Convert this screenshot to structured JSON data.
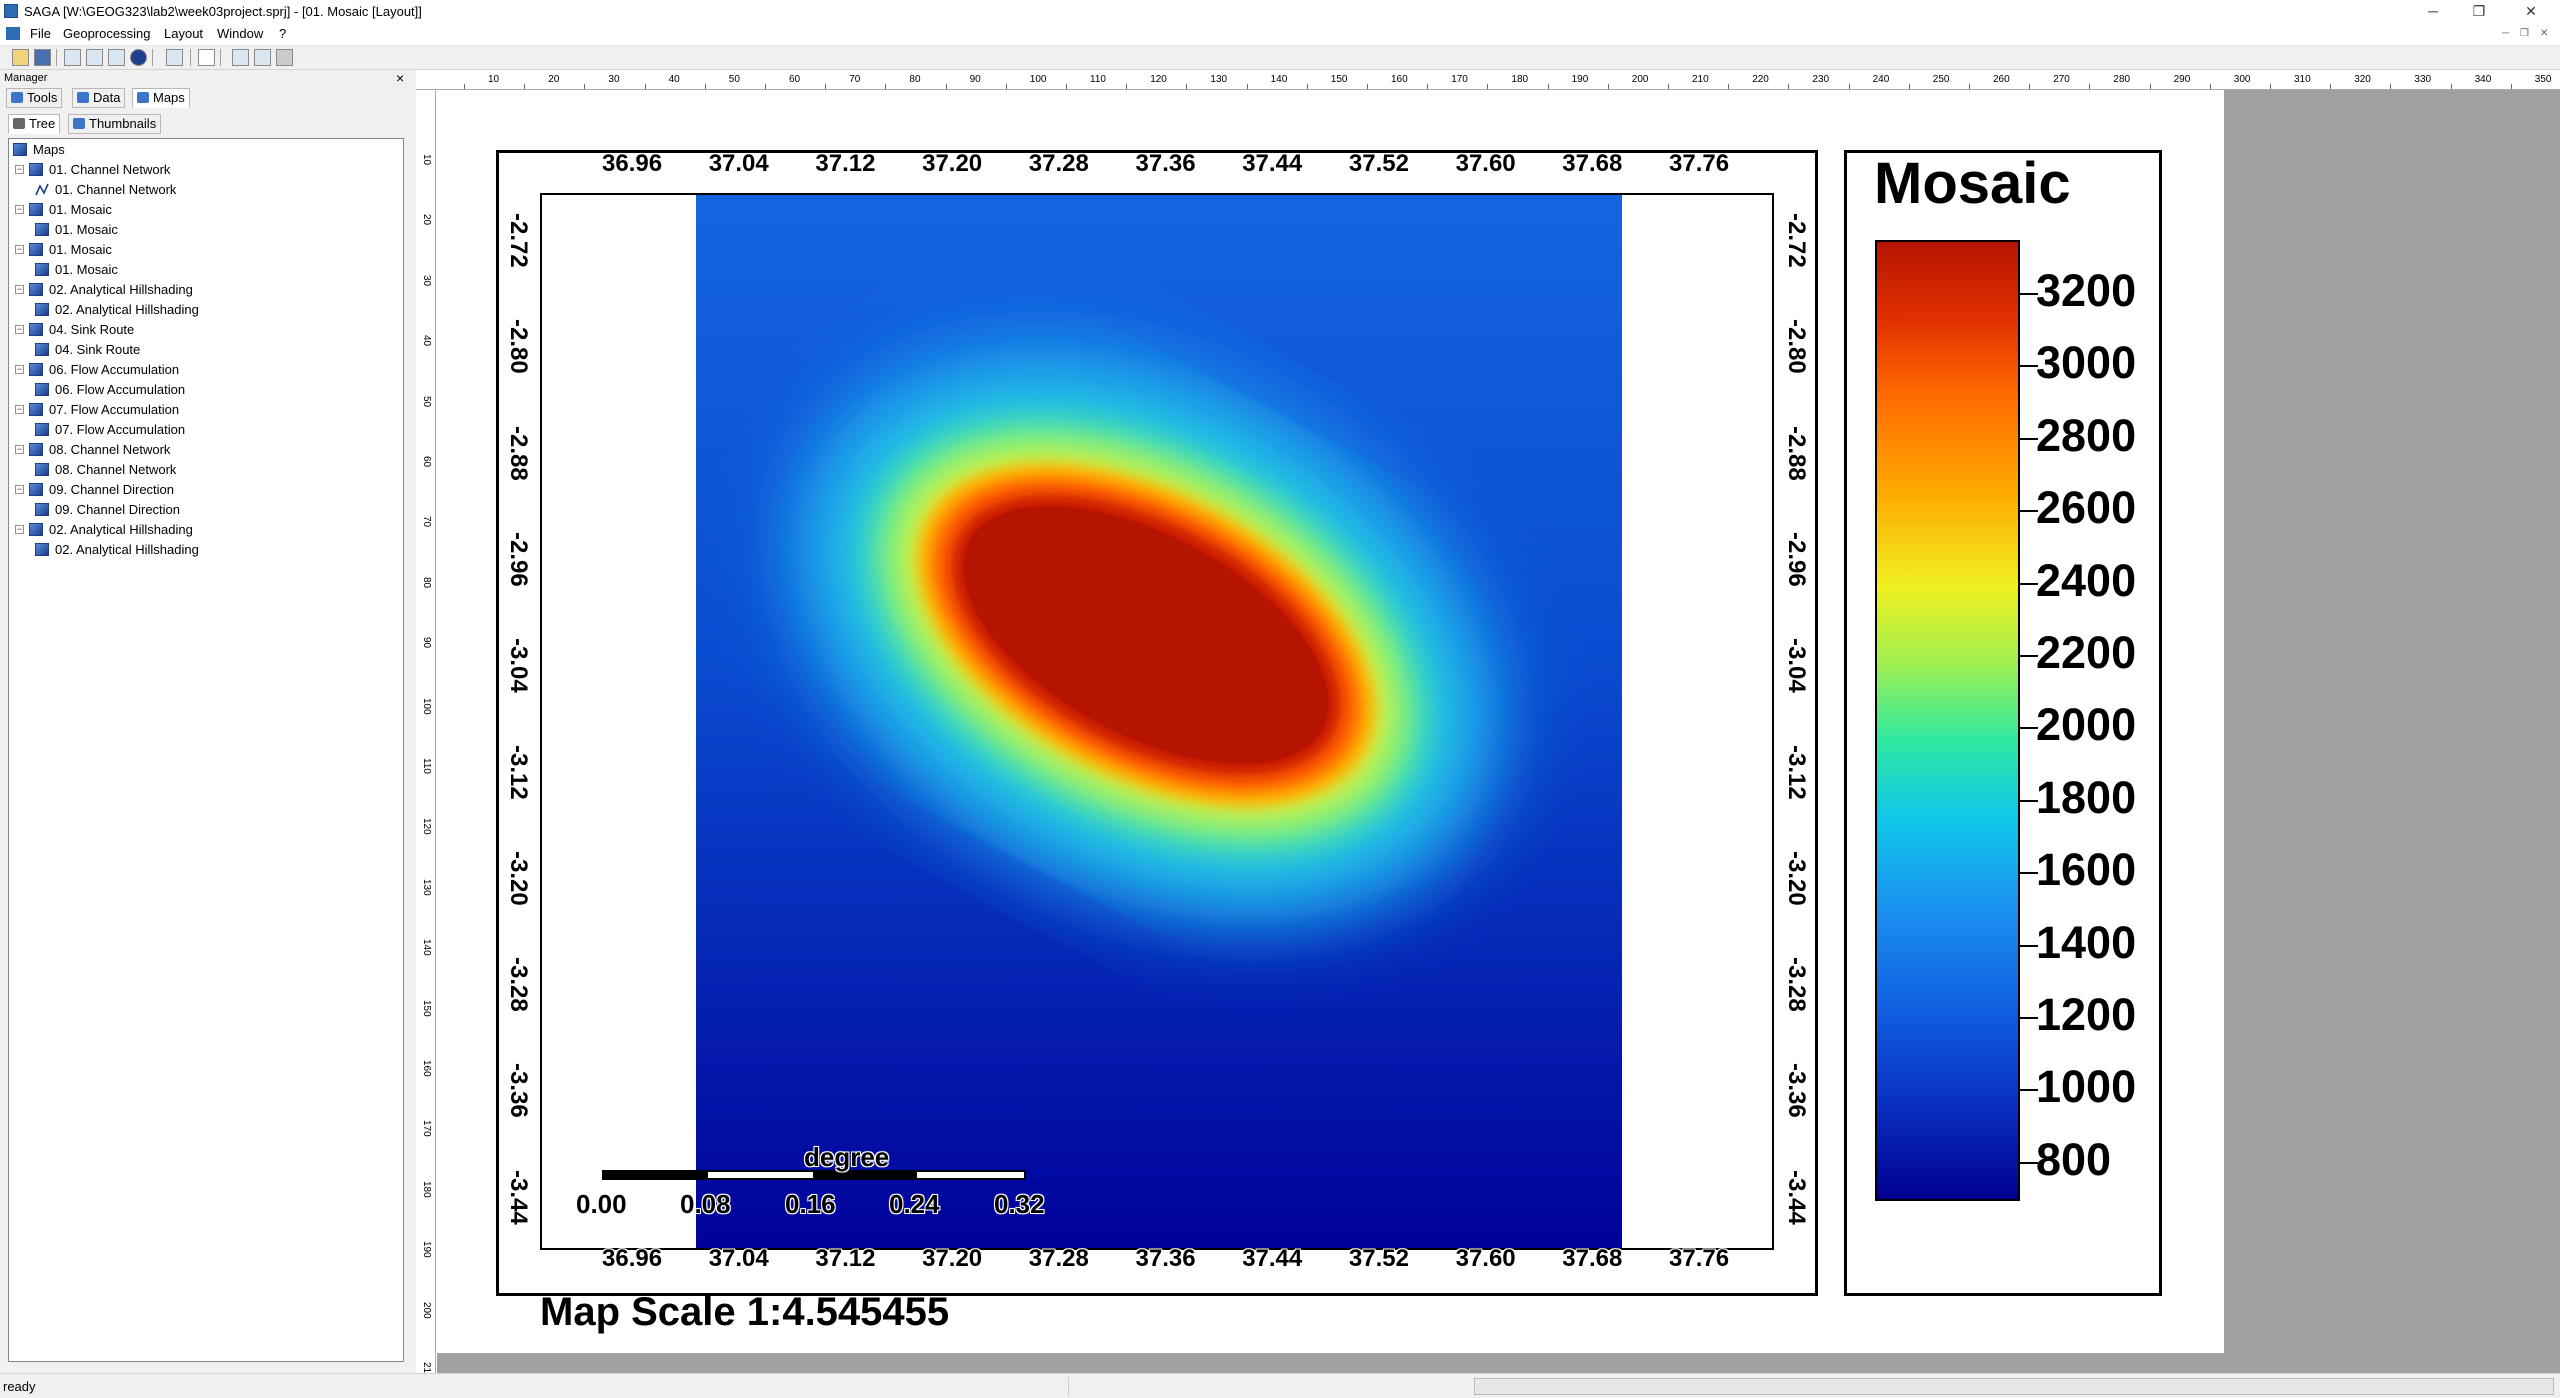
{
  "window": {
    "title": "SAGA [W:\\GEOG323\\lab2\\week03project.sprj] - [01. Mosaic [Layout]]",
    "minimize": "─",
    "restore": "❐",
    "close": "✕"
  },
  "menu": [
    "File",
    "Geoprocessing",
    "Layout",
    "Window",
    "?"
  ],
  "manager": {
    "title": "Manager",
    "close": "×",
    "tabs": [
      "Tools",
      "Data",
      "Maps"
    ],
    "active_tab": "Maps",
    "subtabs": [
      "Tree",
      "Thumbnails"
    ],
    "tree": [
      {
        "label": "Maps",
        "level": 0
      },
      {
        "label": "01. Channel Network",
        "level": 1
      },
      {
        "label": "01. Channel Network",
        "level": 2,
        "icon": "line-layer-icon"
      },
      {
        "label": "01. Mosaic",
        "level": 1
      },
      {
        "label": "01. Mosaic",
        "level": 2
      },
      {
        "label": "01. Mosaic",
        "level": 1
      },
      {
        "label": "01. Mosaic",
        "level": 2
      },
      {
        "label": "02. Analytical Hillshading",
        "level": 1
      },
      {
        "label": "02. Analytical Hillshading",
        "level": 2
      },
      {
        "label": "04. Sink Route",
        "level": 1
      },
      {
        "label": "04. Sink Route",
        "level": 2
      },
      {
        "label": "06. Flow Accumulation",
        "level": 1
      },
      {
        "label": "06. Flow Accumulation",
        "level": 2
      },
      {
        "label": "07. Flow Accumulation",
        "level": 1
      },
      {
        "label": "07. Flow Accumulation",
        "level": 2
      },
      {
        "label": "08. Channel Network",
        "level": 1
      },
      {
        "label": "08. Channel Network",
        "level": 2
      },
      {
        "label": "09. Channel Direction",
        "level": 1
      },
      {
        "label": "09. Channel Direction",
        "level": 2
      },
      {
        "label": "02. Analytical Hillshading",
        "level": 1
      },
      {
        "label": "02. Analytical Hillshading",
        "level": 2
      }
    ]
  },
  "rulers": {
    "horizontal": [
      "10",
      "20",
      "30",
      "40",
      "50",
      "60",
      "70",
      "80",
      "90",
      "100",
      "110",
      "120",
      "130",
      "140",
      "150",
      "160",
      "170",
      "180",
      "190",
      "200",
      "210",
      "220",
      "230",
      "240",
      "250",
      "260",
      "270",
      "280",
      "290",
      "300",
      "310",
      "320",
      "330",
      "340",
      "350"
    ],
    "vertical": [
      "10",
      "20",
      "30",
      "40",
      "50",
      "60",
      "70",
      "80",
      "90",
      "100",
      "110",
      "120",
      "130",
      "140",
      "150",
      "160",
      "170",
      "180",
      "190",
      "200",
      "210"
    ]
  },
  "map": {
    "lon_ticks": [
      "36.96",
      "37.04",
      "37.12",
      "37.20",
      "37.28",
      "37.36",
      "37.44",
      "37.52",
      "37.60",
      "37.68",
      "37.76"
    ],
    "lat_ticks": [
      "-2.72",
      "-2.80",
      "-2.88",
      "-2.96",
      "-3.04",
      "-3.12",
      "-3.20",
      "-3.28",
      "-3.36",
      "-3.44"
    ],
    "scalebar": {
      "unit": "degree",
      "labels": [
        "0.00",
        "0.08",
        "0.16",
        "0.24",
        "0.32"
      ]
    },
    "map_scale_text": "Map Scale 1:4.545455"
  },
  "legend": {
    "title": "Mosaic",
    "levels": [
      "3200",
      "3000",
      "2800",
      "2600",
      "2400",
      "2200",
      "2000",
      "1800",
      "1600",
      "1400",
      "1200",
      "1000",
      "800"
    ],
    "colors": {
      "high": "#b41400",
      "mid": "#f0f020",
      "low": "#000090"
    }
  },
  "status": {
    "text": "ready"
  }
}
